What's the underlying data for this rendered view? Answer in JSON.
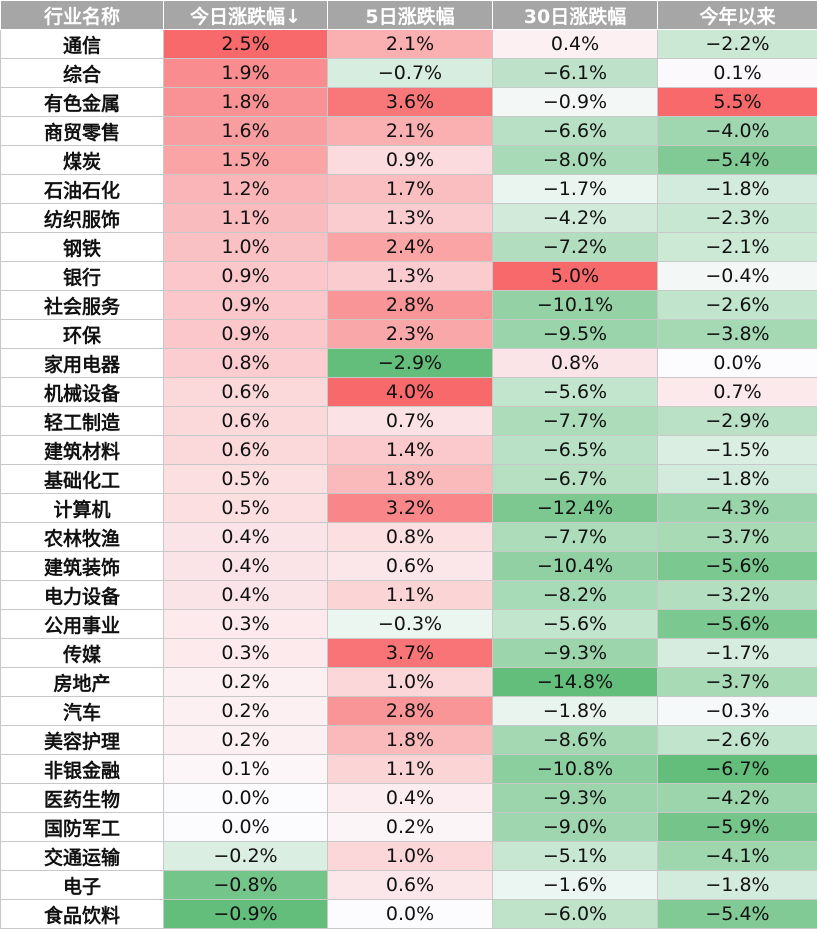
{
  "chart_data": {
    "type": "table",
    "columns": [
      "行业名称",
      "今日涨跌幅↓",
      "5日涨跌幅",
      "30日涨跌幅",
      "今年以来"
    ],
    "unit": "%",
    "rows": [
      {
        "name": "通信",
        "values": [
          2.5,
          2.1,
          0.4,
          -2.2
        ]
      },
      {
        "name": "综合",
        "values": [
          1.9,
          -0.7,
          -6.1,
          0.1
        ]
      },
      {
        "name": "有色金属",
        "values": [
          1.8,
          3.6,
          -0.9,
          5.5
        ]
      },
      {
        "name": "商贸零售",
        "values": [
          1.6,
          2.1,
          -6.6,
          -4.0
        ]
      },
      {
        "name": "煤炭",
        "values": [
          1.5,
          0.9,
          -8.0,
          -5.4
        ]
      },
      {
        "name": "石油石化",
        "values": [
          1.2,
          1.7,
          -1.7,
          -1.8
        ]
      },
      {
        "name": "纺织服饰",
        "values": [
          1.1,
          1.3,
          -4.2,
          -2.3
        ]
      },
      {
        "name": "钢铁",
        "values": [
          1.0,
          2.4,
          -7.2,
          -2.1
        ]
      },
      {
        "name": "银行",
        "values": [
          0.9,
          1.3,
          5.0,
          -0.4
        ]
      },
      {
        "name": "社会服务",
        "values": [
          0.9,
          2.8,
          -10.1,
          -2.6
        ]
      },
      {
        "name": "环保",
        "values": [
          0.9,
          2.3,
          -9.5,
          -3.8
        ]
      },
      {
        "name": "家用电器",
        "values": [
          0.8,
          -2.9,
          0.8,
          0.0
        ]
      },
      {
        "name": "机械设备",
        "values": [
          0.6,
          4.0,
          -5.6,
          0.7
        ]
      },
      {
        "name": "轻工制造",
        "values": [
          0.6,
          0.7,
          -7.7,
          -2.9
        ]
      },
      {
        "name": "建筑材料",
        "values": [
          0.6,
          1.4,
          -6.5,
          -1.5
        ]
      },
      {
        "name": "基础化工",
        "values": [
          0.5,
          1.8,
          -6.7,
          -1.8
        ]
      },
      {
        "name": "计算机",
        "values": [
          0.5,
          3.2,
          -12.4,
          -4.3
        ]
      },
      {
        "name": "农林牧渔",
        "values": [
          0.4,
          0.8,
          -7.7,
          -3.7
        ]
      },
      {
        "name": "建筑装饰",
        "values": [
          0.4,
          0.6,
          -10.4,
          -5.6
        ]
      },
      {
        "name": "电力设备",
        "values": [
          0.4,
          1.1,
          -8.2,
          -3.2
        ]
      },
      {
        "name": "公用事业",
        "values": [
          0.3,
          -0.3,
          -5.6,
          -5.6
        ]
      },
      {
        "name": "传媒",
        "values": [
          0.3,
          3.7,
          -9.3,
          -1.7
        ]
      },
      {
        "name": "房地产",
        "values": [
          0.2,
          1.0,
          -14.8,
          -3.7
        ]
      },
      {
        "name": "汽车",
        "values": [
          0.2,
          2.8,
          -1.8,
          -0.3
        ]
      },
      {
        "name": "美容护理",
        "values": [
          0.2,
          1.8,
          -8.6,
          -2.6
        ]
      },
      {
        "name": "非银金融",
        "values": [
          0.1,
          1.1,
          -10.8,
          -6.7
        ]
      },
      {
        "name": "医药生物",
        "values": [
          0.0,
          0.4,
          -9.3,
          -4.2
        ]
      },
      {
        "name": "国防军工",
        "values": [
          0.0,
          0.2,
          -9.0,
          -5.9
        ]
      },
      {
        "name": "交通运输",
        "values": [
          -0.2,
          1.0,
          -5.1,
          -4.1
        ]
      },
      {
        "name": "电子",
        "values": [
          -0.8,
          0.6,
          -1.6,
          -1.8
        ]
      },
      {
        "name": "食品饮料",
        "values": [
          -0.9,
          0.0,
          -6.0,
          -5.4
        ]
      }
    ]
  },
  "colors": {
    "header_bg": "#a6a6a6",
    "header_text": "#ffffff",
    "max_red": "#f8696b",
    "max_green": "#63be7b",
    "neutral": "#fcfcff"
  }
}
